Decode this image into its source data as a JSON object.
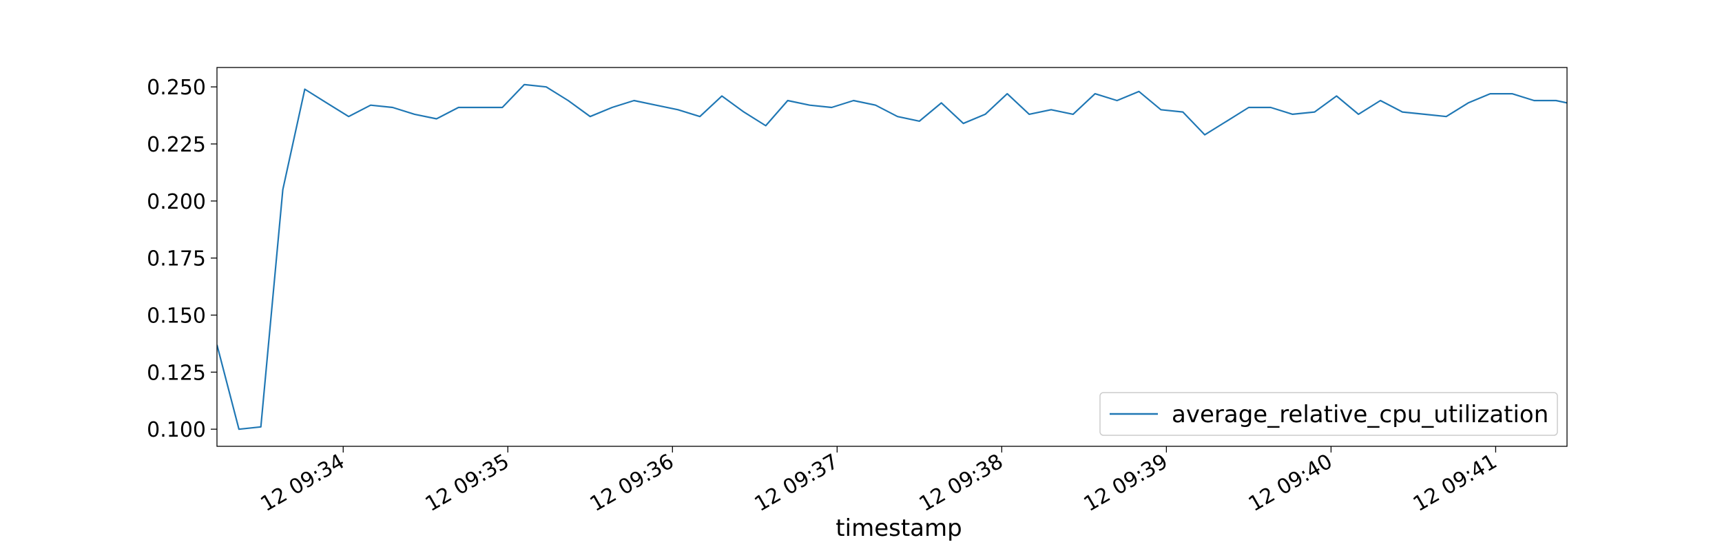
{
  "chart_data": {
    "type": "line",
    "title": "",
    "xlabel": "timestamp",
    "ylabel": "",
    "ylim": [
      0.0925,
      0.2585
    ],
    "y_ticks": [
      0.1,
      0.125,
      0.15,
      0.175,
      0.2,
      0.225,
      0.25
    ],
    "y_tick_labels": [
      "0.100",
      "0.125",
      "0.150",
      "0.175",
      "0.200",
      "0.225",
      "0.250"
    ],
    "xlim": [
      "09:33:14",
      "09:41:26"
    ],
    "x_ticks": [
      "09:34:00",
      "09:35:00",
      "09:36:00",
      "09:37:00",
      "09:38:00",
      "09:39:00",
      "09:40:00",
      "09:41:00"
    ],
    "x_tick_labels": [
      "12 09:34",
      "12 09:35",
      "12 09:36",
      "12 09:37",
      "12 09:38",
      "12 09:39",
      "12 09:40",
      "12 09:41"
    ],
    "legend_position": "bottom-right",
    "grid": false,
    "color": "#1f77b4",
    "series": [
      {
        "name": "average_relative_cpu_utilization",
        "x": [
          "09:33:14",
          "09:33:22",
          "09:33:30",
          "09:33:38",
          "09:33:46",
          "09:33:54",
          "09:34:02",
          "09:34:10",
          "09:34:18",
          "09:34:26",
          "09:34:34",
          "09:34:42",
          "09:34:50",
          "09:34:58",
          "09:35:06",
          "09:35:14",
          "09:35:22",
          "09:35:30",
          "09:35:38",
          "09:35:46",
          "09:35:54",
          "09:36:02",
          "09:36:10",
          "09:36:18",
          "09:36:26",
          "09:36:34",
          "09:36:42",
          "09:36:50",
          "09:36:58",
          "09:37:06",
          "09:37:14",
          "09:37:22",
          "09:37:30",
          "09:37:38",
          "09:37:46",
          "09:37:54",
          "09:38:02",
          "09:38:10",
          "09:38:18",
          "09:38:26",
          "09:38:34",
          "09:38:42",
          "09:38:50",
          "09:38:58",
          "09:39:06",
          "09:39:14",
          "09:39:22",
          "09:39:30",
          "09:39:38",
          "09:39:46",
          "09:39:54",
          "09:40:02",
          "09:40:10",
          "09:40:18",
          "09:40:26",
          "09:40:34",
          "09:40:42",
          "09:40:50",
          "09:40:58",
          "09:41:06",
          "09:41:14",
          "09:41:22",
          "09:41:26"
        ],
        "y": [
          0.137,
          0.1,
          0.101,
          0.205,
          0.249,
          0.243,
          0.237,
          0.242,
          0.241,
          0.238,
          0.236,
          0.241,
          0.241,
          0.241,
          0.251,
          0.25,
          0.244,
          0.237,
          0.241,
          0.244,
          0.242,
          0.24,
          0.237,
          0.246,
          0.239,
          0.233,
          0.244,
          0.242,
          0.241,
          0.244,
          0.242,
          0.237,
          0.235,
          0.243,
          0.234,
          0.238,
          0.247,
          0.238,
          0.24,
          0.238,
          0.247,
          0.244,
          0.248,
          0.24,
          0.239,
          0.229,
          0.235,
          0.241,
          0.241,
          0.238,
          0.239,
          0.246,
          0.238,
          0.244,
          0.239,
          0.238,
          0.237,
          0.243,
          0.247,
          0.247,
          0.244,
          0.244,
          0.243
        ]
      }
    ]
  }
}
